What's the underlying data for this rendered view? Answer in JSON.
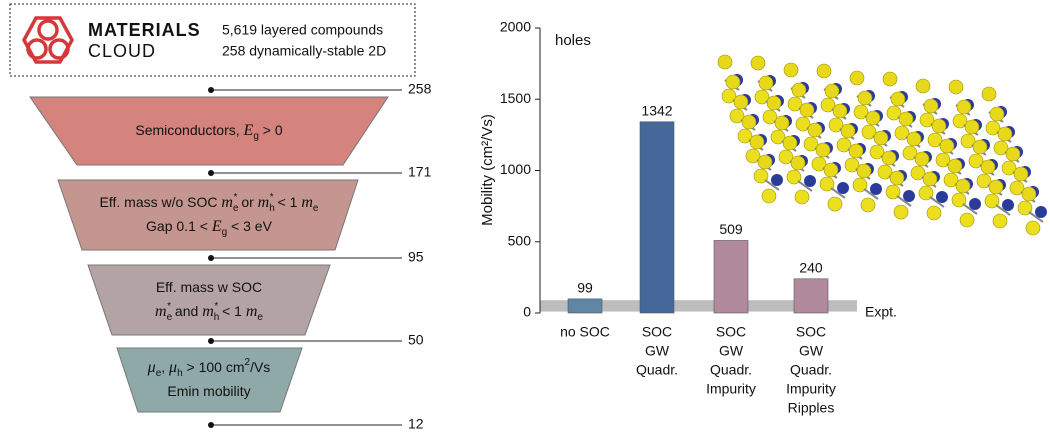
{
  "header": {
    "logo": [
      "MATERIALS",
      "CLOUD"
    ],
    "lines": [
      "5,619 layered compounds",
      "258 dynamically-stable 2D"
    ]
  },
  "funnel": {
    "counts": [
      "258",
      "171",
      "95",
      "50",
      "12"
    ],
    "stages": [
      [
        [
          "Semiconductors, ",
          {
            "base": "E",
            "sub": "g"
          },
          " > 0"
        ]
      ],
      [
        [
          "Eff. mass w/o SOC ",
          {
            "base": "m",
            "sub": "e",
            "sup": "*"
          },
          " or ",
          {
            "base": "m",
            "sub": "h",
            "sup": "*"
          },
          " < 1 ",
          {
            "base": "m",
            "sub": "e"
          }
        ],
        [
          "Gap 0.1 < ",
          {
            "base": "E",
            "sub": "g"
          },
          " < 3 eV"
        ]
      ],
      [
        [
          "Eff. mass w SOC"
        ],
        [
          {
            "base": "m",
            "sub": "e",
            "sup": "*"
          },
          " and ",
          {
            "base": "m",
            "sub": "h",
            "sup": "*"
          },
          " < 1 ",
          {
            "base": "m",
            "sub": "e"
          }
        ]
      ],
      [
        [
          {
            "base": "μ",
            "sub": "e"
          },
          ", ",
          {
            "base": "μ",
            "sub": "h"
          },
          " > 100 cm",
          {
            "base": "",
            "sup": "2"
          },
          "/Vs"
        ],
        [
          "Emin mobility"
        ]
      ]
    ]
  },
  "chart_data": {
    "type": "bar",
    "ylabel": "Mobility (cm²/Vs)",
    "annotation": "holes",
    "categories": [
      [
        "no SOC"
      ],
      [
        "SOC",
        "GW",
        "Quadr."
      ],
      [
        "SOC",
        "GW",
        "Quadr.",
        "Impurity"
      ],
      [
        "SOC",
        "GW",
        "Quadr.",
        "Impurity",
        "Ripples"
      ]
    ],
    "values": [
      99,
      1342,
      509,
      240
    ],
    "colors": [
      "#5f86a3",
      "#46679a",
      "#b28a9e",
      "#b28a9e"
    ],
    "ylim": [
      0,
      2000
    ],
    "yticks": [
      0,
      500,
      1000,
      1500,
      2000
    ],
    "reference": {
      "label": "Expt.",
      "range": [
        10,
        90
      ],
      "color": "#bdbdbd"
    }
  }
}
